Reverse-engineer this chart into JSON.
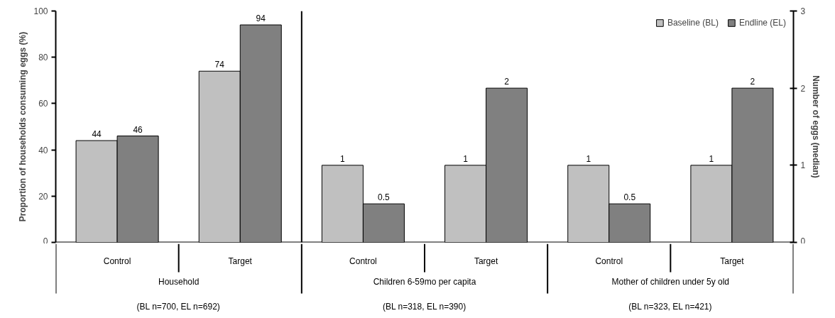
{
  "chart_data": {
    "type": "bar",
    "categories": [
      "Control",
      "Target",
      "Control",
      "Target",
      "Control",
      "Target"
    ],
    "ylabel": "Proportion of households consuming eggs (%)",
    "y2label": "Number of eggs (median)",
    "ylim": [
      0,
      100
    ],
    "yticks": [
      0,
      20,
      40,
      60,
      80,
      100
    ],
    "y2lim": [
      0,
      3
    ],
    "y2ticks": [
      0,
      1,
      2,
      3
    ],
    "series": [
      {
        "name": "Baseline (BL)",
        "color": "#c0c0c0",
        "values": [
          44,
          74,
          null,
          null,
          null,
          null
        ]
      },
      {
        "name": "Endline (EL)",
        "color": "#808080",
        "values": [
          46,
          94,
          null,
          null,
          null,
          null
        ]
      },
      {
        "color": "#c0c0c0",
        "axis": "y2",
        "values": [
          null,
          null,
          1,
          1,
          1,
          1
        ]
      },
      {
        "color": "#808080",
        "axis": "y2",
        "values": [
          null,
          null,
          0.5,
          2,
          0.5,
          2
        ]
      }
    ],
    "data_labels": true,
    "legend": "top right",
    "grid": false,
    "annotations": [
      "Household",
      "(BL n=700, EL n=692)",
      "Children 6-59mo per capita",
      "(BL n=318, EL n=390)",
      "Mother of children under 5y old",
      "(BL n=323, EL n=421)"
    ]
  }
}
